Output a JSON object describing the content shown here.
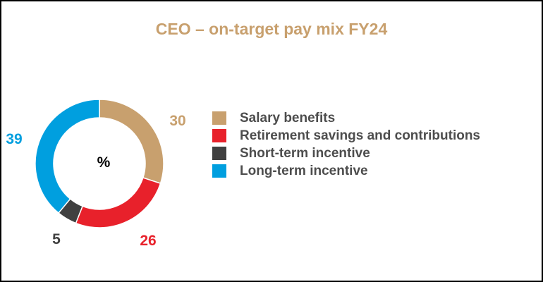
{
  "title": "CEO – on-target pay mix FY24",
  "chart_data": {
    "type": "pie",
    "subtype": "donut",
    "title": "CEO – on-target pay mix FY24",
    "center_label": "%",
    "categories": [
      "Salary benefits",
      "Retirement savings and contributions",
      "Short-term incentive",
      "Long-term incentive"
    ],
    "values": [
      30,
      26,
      5,
      39
    ],
    "colors": [
      "#c8a06e",
      "#e8212b",
      "#404040",
      "#009fdf"
    ],
    "label_colors": [
      "#c8a06e",
      "#e8212b",
      "#404040",
      "#009fdf"
    ],
    "legend_position": "right"
  }
}
